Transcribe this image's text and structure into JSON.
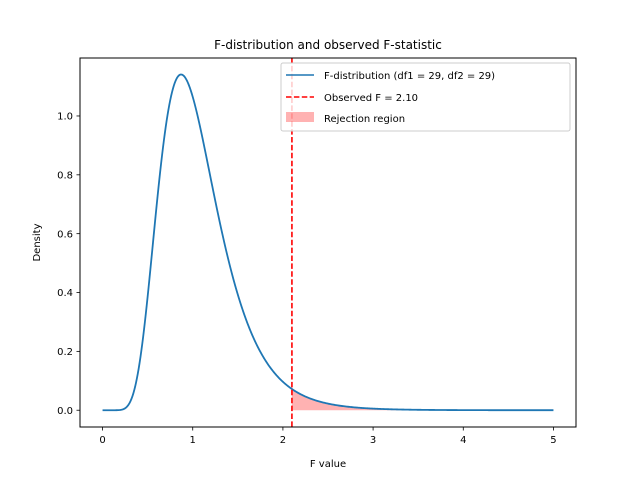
{
  "chart_data": {
    "type": "line",
    "title": "F-distribution and observed F-statistic",
    "xlabel": "F value",
    "ylabel": "Density",
    "xlim": [
      -0.25,
      5.25
    ],
    "ylim": [
      -0.057,
      1.197
    ],
    "xticks": [
      0,
      1,
      2,
      3,
      4,
      5
    ],
    "xtick_labels": [
      "0",
      "1",
      "2",
      "3",
      "4",
      "5"
    ],
    "yticks": [
      0.0,
      0.2,
      0.4,
      0.6,
      0.8,
      1.0
    ],
    "ytick_labels": [
      "0.0",
      "0.2",
      "0.4",
      "0.6",
      "0.8",
      "1.0"
    ],
    "grid": false,
    "legend_position": "top-right",
    "series": [
      {
        "name": "F-distribution (df1 = 29, df2 = 29)",
        "type": "line",
        "color": "#1f77b4",
        "df1": 29,
        "df2": 29,
        "x_range": [
          0,
          5
        ],
        "x": [
          0.0,
          0.25,
          0.3,
          0.4,
          0.5,
          0.6,
          0.7,
          0.8,
          0.85,
          0.9,
          1.0,
          1.1,
          1.2,
          1.4,
          1.6,
          1.8,
          2.0,
          2.1,
          2.5,
          3.0,
          4.0,
          5.0
        ],
        "y": [
          0.0,
          0.003,
          0.02,
          0.14,
          0.43,
          0.76,
          1.02,
          1.13,
          1.14,
          1.13,
          1.02,
          0.86,
          0.69,
          0.41,
          0.23,
          0.125,
          0.068,
          0.05,
          0.016,
          0.004,
          0.0004,
          5e-05
        ]
      }
    ],
    "observed": {
      "name": "Observed F = 2.10",
      "value": 2.1,
      "color": "#ff0000",
      "style": "dashed"
    },
    "rejection_region": {
      "name": "Rejection region",
      "from": 2.1,
      "to": 5.0,
      "color": "#ff0000",
      "alpha": 0.3
    }
  }
}
